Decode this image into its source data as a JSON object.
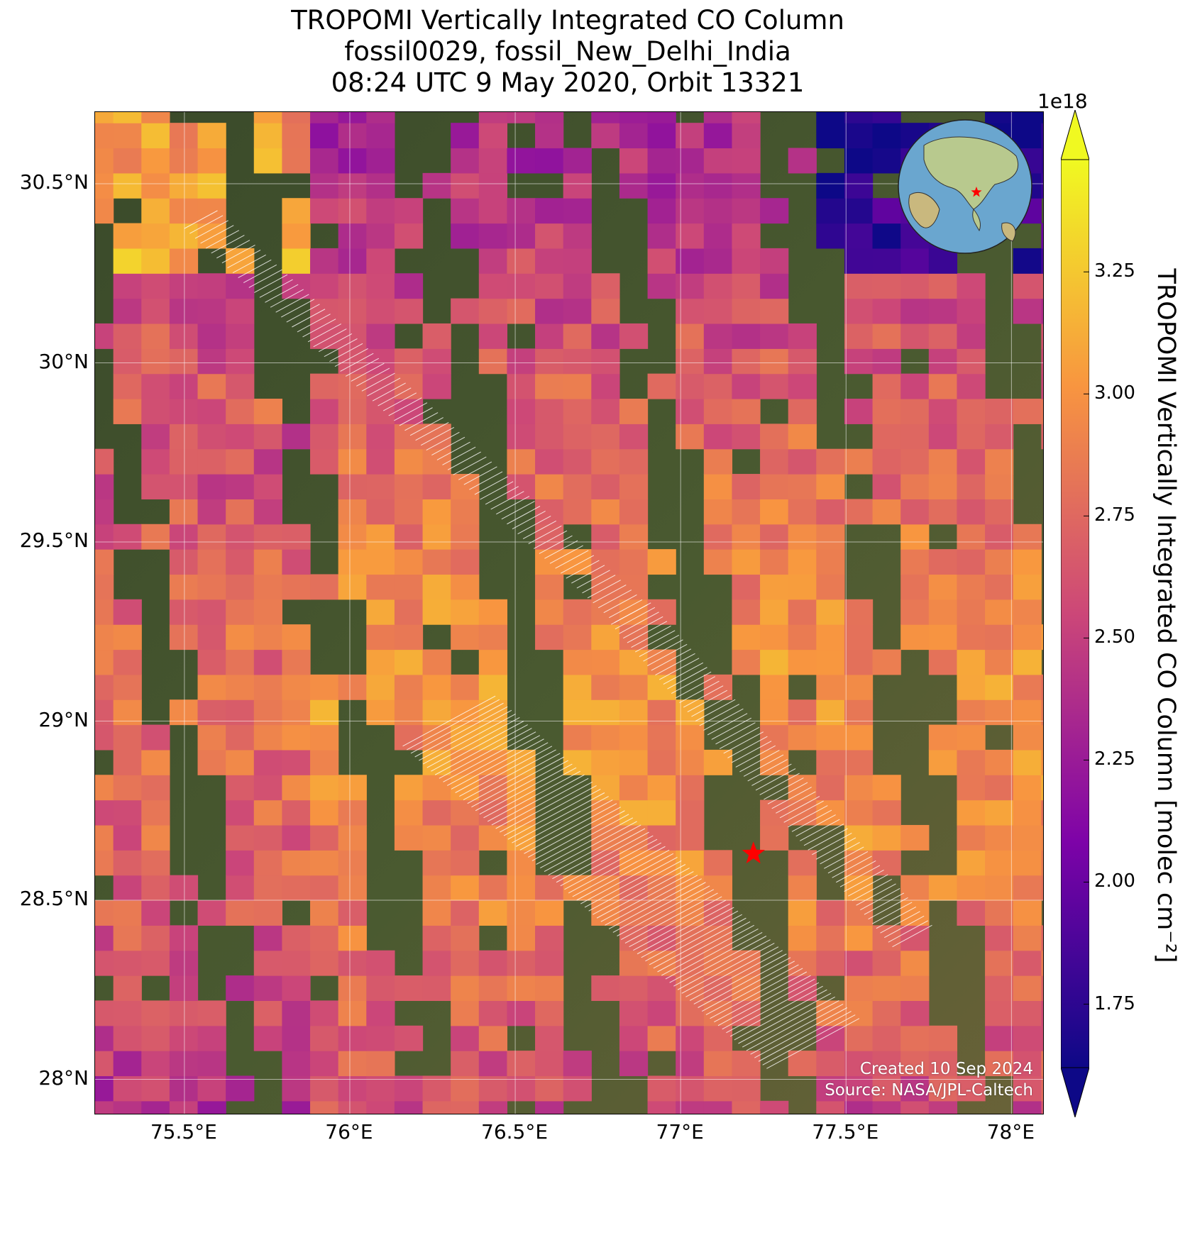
{
  "title": {
    "line1": "TROPOMI Vertically Integrated CO Column",
    "line2": "fossil0029, fossil_New_Delhi_India",
    "line3": "08:24 UTC 9 May 2020, Orbit 13321"
  },
  "map": {
    "lon_range": [
      75.23,
      78.1
    ],
    "lat_range": [
      27.9,
      30.7
    ],
    "lon_ticks": [
      {
        "value": 75.5,
        "label": "75.5°E"
      },
      {
        "value": 76.0,
        "label": "76°E"
      },
      {
        "value": 76.5,
        "label": "76.5°E"
      },
      {
        "value": 77.0,
        "label": "77°E"
      },
      {
        "value": 77.5,
        "label": "77.5°E"
      },
      {
        "value": 78.0,
        "label": "78°E"
      }
    ],
    "lat_ticks": [
      {
        "value": 30.5,
        "label": "30.5°N"
      },
      {
        "value": 30.0,
        "label": "30°N"
      },
      {
        "value": 29.5,
        "label": "29.5°N"
      },
      {
        "value": 29.0,
        "label": "29°N"
      },
      {
        "value": 28.5,
        "label": "28.5°N"
      },
      {
        "value": 28.0,
        "label": "28°N"
      }
    ],
    "gridlines": true,
    "basemap": "satellite imagery",
    "target": {
      "name": "New Delhi",
      "lon": 77.22,
      "lat": 28.63,
      "marker": "red-star"
    },
    "co_field_range": [
      1.65e+18,
      3.35e+18
    ],
    "inset": {
      "type": "globe",
      "placement": "top-right",
      "marker": "red-star"
    }
  },
  "colorbar": {
    "title": "TROPOMI Vertically Integrated CO Column [molec cm⁻²]",
    "exponent": "1e18",
    "ticks": [
      "1.75",
      "2.00",
      "2.25",
      "2.50",
      "2.75",
      "3.00",
      "3.25"
    ],
    "tick_values": [
      1.75,
      2.0,
      2.25,
      2.5,
      2.75,
      3.0,
      3.25
    ],
    "range": [
      1.62,
      3.48
    ],
    "extend": "both",
    "colormap": "plasma"
  },
  "credits": {
    "created": "Created 10 Sep 2024",
    "source": "Source: NASA/JPL-Caltech"
  }
}
